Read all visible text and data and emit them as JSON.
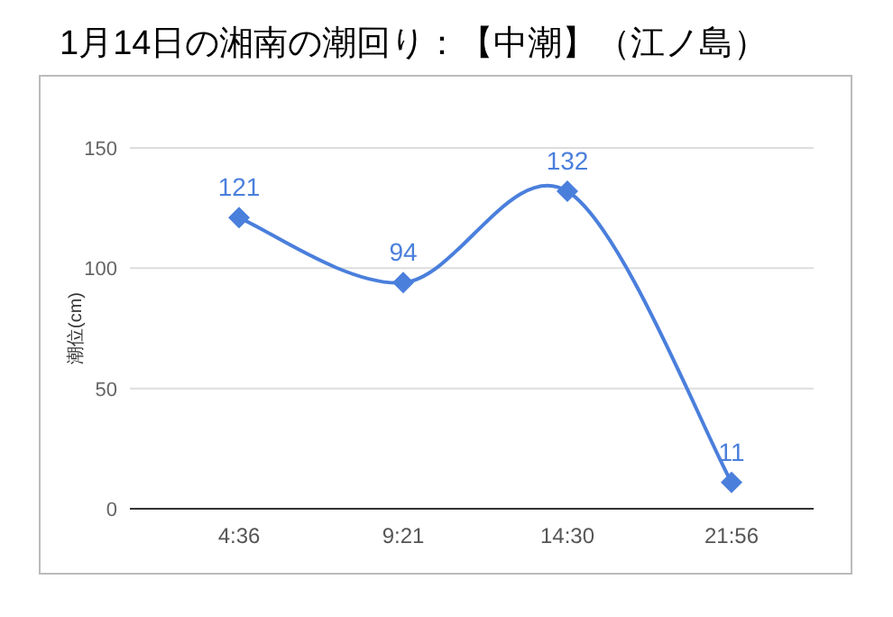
{
  "chart_data": {
    "type": "line",
    "title": "1月14日の湘南の潮回り：【中潮】（江ノ島）",
    "ylabel": "潮位(cm)",
    "categories": [
      "4:36",
      "9:21",
      "14:30",
      "21:56"
    ],
    "series": [
      {
        "color": "#4a7fdc",
        "values": [
          121,
          94,
          132,
          11
        ]
      }
    ],
    "ylim": [
      0,
      150
    ],
    "yticks": [
      0,
      50,
      100,
      150
    ],
    "grid": "y",
    "marker": "diamond",
    "data_labels": true
  }
}
